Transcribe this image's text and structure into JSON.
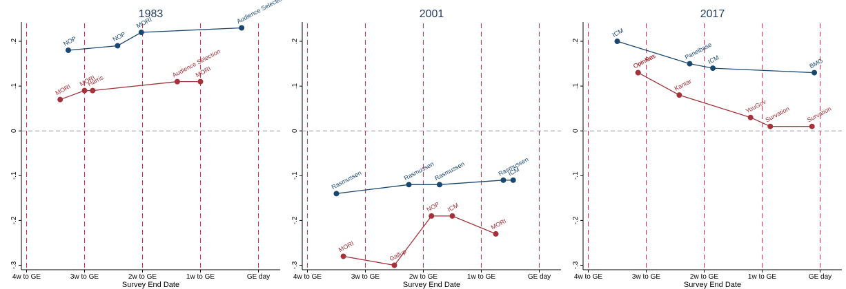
{
  "colors": {
    "blue": "#1a476f",
    "red": "#a3323a",
    "vline": "#e0284a",
    "zero": "#9a9a9a"
  },
  "chart_data": [
    {
      "type": "line",
      "title": "1983",
      "xlabel": "Survey End Date",
      "ylabel": "",
      "x_ticks": [
        "4w to GE",
        "3w to GE",
        "2w to GE",
        "1w to GE",
        "GE day"
      ],
      "x_range": [
        0,
        4
      ],
      "ylim": [
        -0.31,
        0.24
      ],
      "y_ticks": [
        {
          "v": 0.2,
          "label": ".2"
        },
        {
          "v": 0.1,
          "label": ".1"
        },
        {
          "v": 0,
          "label": "0"
        },
        {
          "v": -0.1,
          "label": "-.1"
        },
        {
          "v": -0.2,
          "label": "-.2"
        },
        {
          "v": -0.3,
          "label": "-.3"
        }
      ],
      "series": [
        {
          "color": "blue",
          "points": [
            {
              "x": 0.72,
              "y": 0.18,
              "label": "NOP"
            },
            {
              "x": 1.57,
              "y": 0.19,
              "label": "NOP"
            },
            {
              "x": 1.98,
              "y": 0.22,
              "label": "MORI"
            },
            {
              "x": 3.71,
              "y": 0.23,
              "label": "Audience Selection"
            }
          ]
        },
        {
          "color": "red",
          "points": [
            {
              "x": 0.58,
              "y": 0.07,
              "label": "MORI"
            },
            {
              "x": 1.0,
              "y": 0.09,
              "label": "MORI"
            },
            {
              "x": 1.14,
              "y": 0.09,
              "label": "Harris"
            },
            {
              "x": 2.6,
              "y": 0.11,
              "label": "Audience Selection"
            },
            {
              "x": 3.0,
              "y": 0.11,
              "label": "MORI"
            }
          ]
        }
      ]
    },
    {
      "type": "line",
      "title": "2001",
      "xlabel": "Survey End Date",
      "ylabel": "",
      "x_ticks": [
        "4w to GE",
        "3w to GE",
        "2w to GE",
        "1w to GE",
        "GE day"
      ],
      "x_range": [
        0,
        4
      ],
      "ylim": [
        -0.31,
        0.24
      ],
      "y_ticks": [
        {
          "v": 0.2,
          "label": ".2"
        },
        {
          "v": 0.1,
          "label": ".1"
        },
        {
          "v": 0,
          "label": "0"
        },
        {
          "v": -0.1,
          "label": "-.1"
        },
        {
          "v": -0.2,
          "label": "-.2"
        },
        {
          "v": -0.3,
          "label": "-.3"
        }
      ],
      "series": [
        {
          "color": "blue",
          "points": [
            {
              "x": 0.5,
              "y": -0.14,
              "label": "Rasmussen"
            },
            {
              "x": 1.75,
              "y": -0.12,
              "label": "Rasmussen"
            },
            {
              "x": 2.28,
              "y": -0.12,
              "label": "Rasmussen"
            },
            {
              "x": 3.38,
              "y": -0.11,
              "label": "Rasmussen"
            },
            {
              "x": 3.55,
              "y": -0.11,
              "label": "ICM"
            }
          ]
        },
        {
          "color": "red",
          "points": [
            {
              "x": 0.62,
              "y": -0.28,
              "label": "MORI"
            },
            {
              "x": 1.5,
              "y": -0.3,
              "label": "Gallup"
            },
            {
              "x": 2.14,
              "y": -0.19,
              "label": "NOP"
            },
            {
              "x": 2.5,
              "y": -0.19,
              "label": "ICM"
            },
            {
              "x": 3.25,
              "y": -0.23,
              "label": "MORI"
            }
          ]
        }
      ]
    },
    {
      "type": "line",
      "title": "2017",
      "xlabel": "Survey End Date",
      "ylabel": "",
      "x_ticks": [
        "4w to GE",
        "3w to GE",
        "2w to GE",
        "1w to GE",
        "GE day"
      ],
      "x_range": [
        0,
        4
      ],
      "ylim": [
        -0.31,
        0.24
      ],
      "y_ticks": [
        {
          "v": 0.2,
          "label": ".2"
        },
        {
          "v": 0.1,
          "label": ".1"
        },
        {
          "v": 0,
          "label": "0"
        },
        {
          "v": -0.1,
          "label": "-.1"
        },
        {
          "v": -0.2,
          "label": "-.2"
        },
        {
          "v": -0.3,
          "label": "-.3"
        }
      ],
      "series": [
        {
          "color": "blue",
          "points": [
            {
              "x": 0.5,
              "y": 0.2,
              "label": "ICM"
            },
            {
              "x": 1.75,
              "y": 0.15,
              "label": "Panelbase"
            },
            {
              "x": 2.15,
              "y": 0.14,
              "label": "ICM"
            },
            {
              "x": 3.9,
              "y": 0.13,
              "label": "BMG"
            }
          ]
        },
        {
          "color": "red",
          "points": [
            {
              "x": 0.86,
              "y": 0.13,
              "label": "Opinium"
            },
            {
              "x": 0.86,
              "y": 0.13,
              "label": "ComRes"
            },
            {
              "x": 1.57,
              "y": 0.08,
              "label": "Kantar"
            },
            {
              "x": 2.8,
              "y": 0.03,
              "label": "YouGov"
            },
            {
              "x": 3.14,
              "y": 0.01,
              "label": "Survation"
            },
            {
              "x": 3.86,
              "y": 0.01,
              "label": "Survation"
            }
          ]
        }
      ]
    }
  ]
}
